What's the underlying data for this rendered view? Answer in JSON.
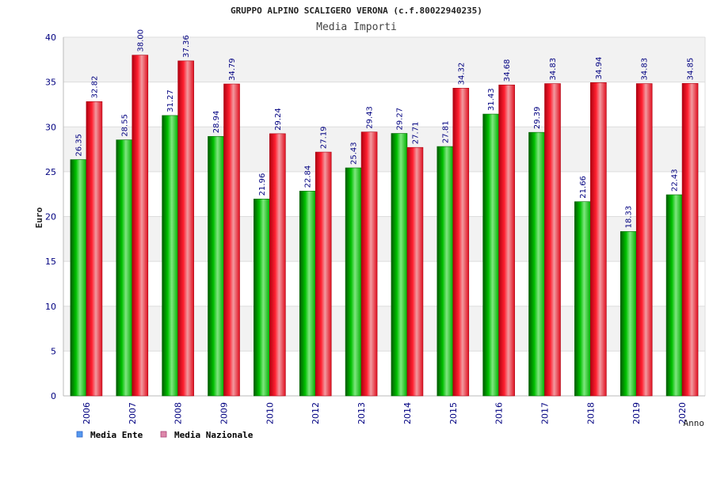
{
  "chart_data": {
    "type": "bar",
    "title": "GRUPPO ALPINO SCALIGERO VERONA (c.f.80022940235)",
    "subtitle": "Media Importi",
    "xlabel": "Anno",
    "ylabel": "Euro",
    "ylim": [
      0,
      40
    ],
    "yticks": [
      0,
      5,
      10,
      15,
      20,
      25,
      30,
      35,
      40
    ],
    "grid": true,
    "legend_position": "bottom-left",
    "categories": [
      "2006",
      "2007",
      "2008",
      "2009",
      "2010",
      "2012",
      "2013",
      "2014",
      "2015",
      "2016",
      "2017",
      "2018",
      "2019",
      "2020"
    ],
    "series": [
      {
        "name": "Media Ente",
        "color": "#00b000",
        "legend_color": "#5599ee",
        "values": [
          26.35,
          28.55,
          31.27,
          28.94,
          21.96,
          22.84,
          25.43,
          29.27,
          27.81,
          31.43,
          29.39,
          21.66,
          18.33,
          22.43
        ],
        "labels": [
          "26.35",
          "28.55",
          "31.27",
          "28.94",
          "21.96",
          "22.84",
          "25.43",
          "29.27",
          "27.81",
          "31.43",
          "29.39",
          "21.66",
          "18.33",
          "22.43"
        ]
      },
      {
        "name": "Media Nazionale",
        "color": "#ee1122",
        "legend_color": "#dd88aa",
        "values": [
          32.82,
          38.0,
          37.36,
          34.79,
          29.24,
          27.19,
          29.43,
          27.71,
          34.32,
          34.68,
          34.83,
          34.94,
          34.83,
          34.85
        ],
        "labels": [
          "32.82",
          "38.00",
          "37.36",
          "34.79",
          "29.24",
          "27.19",
          "29.43",
          "27.71",
          "34.32",
          "34.68",
          "34.83",
          "34.94",
          "34.83",
          "34.85"
        ]
      }
    ]
  }
}
